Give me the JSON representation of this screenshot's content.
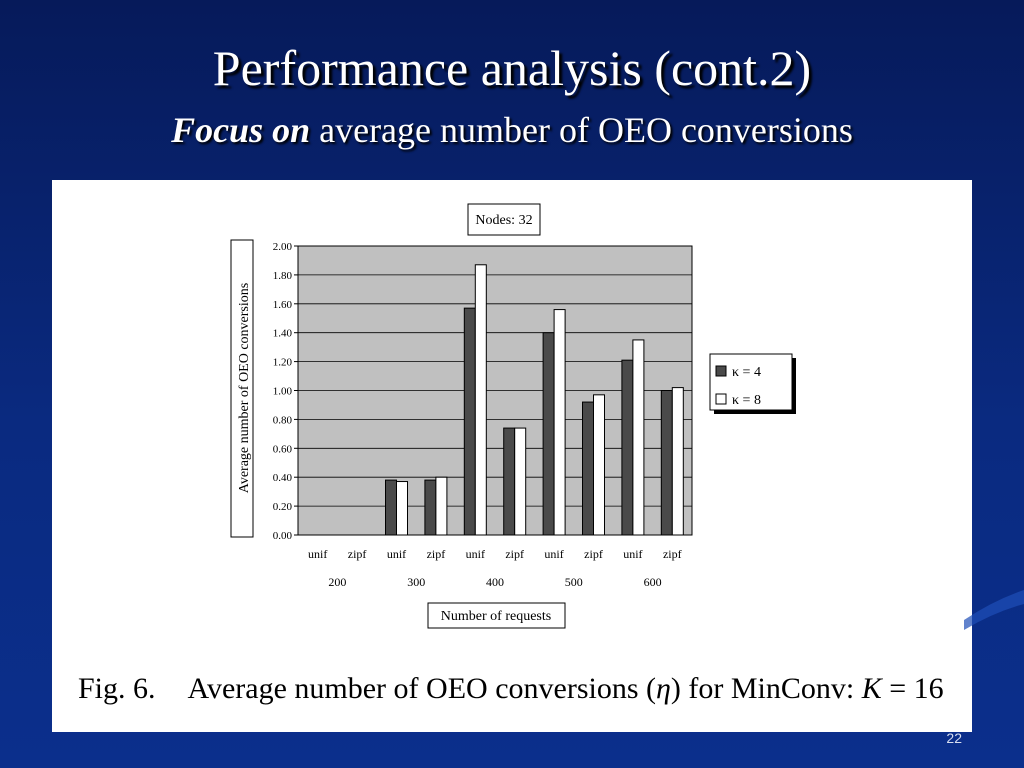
{
  "slide": {
    "title": "Performance analysis (cont.2)",
    "subtitle_lead": "Focus on",
    "subtitle_rest": "average number of OEO conversions",
    "page_number": "22"
  },
  "figure": {
    "label": "Fig. 6.",
    "caption_text": "Average number of OEO conversions (",
    "caption_eta": "η",
    "caption_mid": ") for MinConv: ",
    "caption_k": "K",
    "caption_eq": " = 16"
  },
  "chart_data": {
    "type": "bar",
    "title": "Nodes: 32",
    "ylabel": "Average number of OEO conversions",
    "xlabel": "Number of requests",
    "ylim": [
      0,
      2.0
    ],
    "yticks": [
      "0.00",
      "0.20",
      "0.40",
      "0.60",
      "0.80",
      "1.00",
      "1.20",
      "1.40",
      "1.60",
      "1.80",
      "2.00"
    ],
    "categories": [
      "unif",
      "zipf",
      "unif",
      "zipf",
      "unif",
      "zipf",
      "unif",
      "zipf",
      "unif",
      "zipf"
    ],
    "groups": [
      "200",
      "300",
      "400",
      "500",
      "600"
    ],
    "series": [
      {
        "name": "κ = 4",
        "color": "#4a4a4a",
        "values": [
          0,
          0,
          0.38,
          0.38,
          1.57,
          0.74,
          1.4,
          0.92,
          1.21,
          1.0
        ]
      },
      {
        "name": "κ = 8",
        "color": "#ffffff",
        "values": [
          0,
          0,
          0.37,
          0.4,
          1.87,
          0.74,
          1.56,
          0.97,
          1.35,
          1.02
        ]
      }
    ],
    "plot_background": "#c0c0c0",
    "grid": true,
    "legend_position": "right"
  }
}
